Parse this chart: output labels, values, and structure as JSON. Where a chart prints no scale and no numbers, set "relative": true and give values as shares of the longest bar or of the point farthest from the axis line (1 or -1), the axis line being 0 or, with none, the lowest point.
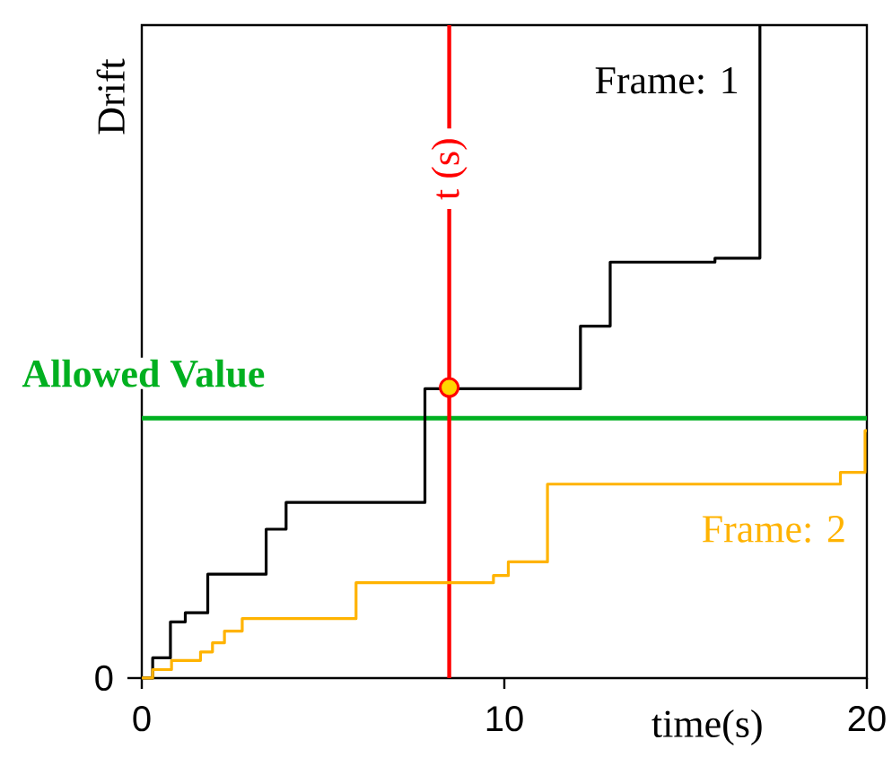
{
  "chart_data": {
    "type": "step",
    "relative": true,
    "xlabel": "time(s)",
    "ylabel": "Drift",
    "xlim": [
      0,
      20
    ],
    "xticks": [
      0,
      10,
      20
    ],
    "annotations": [
      "0"
    ],
    "series": [
      {
        "name": "Frame: 1",
        "color": "#000000",
        "x": [
          0,
          0.3,
          0.79,
          1.2,
          1.82,
          3.43,
          3.98,
          7.81,
          12.1,
          12.92,
          15.81,
          17.05
        ],
        "values": [
          0,
          0.031,
          0.086,
          0.1,
          0.159,
          0.228,
          0.269,
          0.443,
          0.539,
          0.637,
          0.643,
          1
        ]
      },
      {
        "name": "Frame: 2",
        "color": "#ffb300",
        "x": [
          0,
          0.3,
          0.82,
          1.62,
          1.95,
          2.28,
          2.77,
          5.91,
          9.7,
          10.11,
          11.19,
          19.27,
          19.95,
          20
        ],
        "values": [
          0,
          0.013,
          0.027,
          0.04,
          0.054,
          0.072,
          0.091,
          0.146,
          0.157,
          0.178,
          0.297,
          0.315,
          0.379,
          0.379
        ]
      },
      {
        "type": "scatter",
        "marker": "circle",
        "color": "#ffd700",
        "x": [
          8.48
        ],
        "values": [
          0.445
        ]
      }
    ],
    "ref_lines": [
      {
        "axis": "y",
        "value": 0.398,
        "label": "Allowed Value",
        "color": "#00b020"
      },
      {
        "axis": "x",
        "value": 8.48,
        "label": "t (s)",
        "color": "#ff0000"
      }
    ]
  }
}
